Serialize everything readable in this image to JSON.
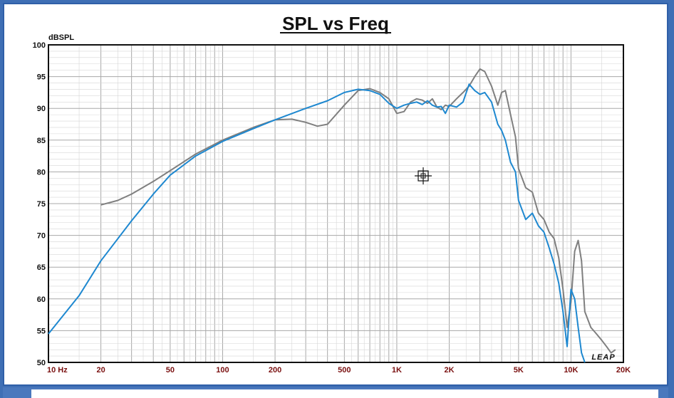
{
  "chart_data": {
    "type": "line",
    "title": "SPL vs Freq",
    "ylabel": "dBSPL",
    "xlabel": "",
    "xscale": "log",
    "xlim": [
      10,
      20000
    ],
    "ylim": [
      50,
      100
    ],
    "grid": true,
    "yticks": [
      50,
      55,
      60,
      65,
      70,
      75,
      80,
      85,
      90,
      95,
      100
    ],
    "xticks": [
      {
        "value": 10,
        "label": "10  Hz"
      },
      {
        "value": 20,
        "label": "20"
      },
      {
        "value": 50,
        "label": "50"
      },
      {
        "value": 100,
        "label": "100"
      },
      {
        "value": 200,
        "label": "200"
      },
      {
        "value": 500,
        "label": "500"
      },
      {
        "value": 1000,
        "label": "1K"
      },
      {
        "value": 2000,
        "label": "2K"
      },
      {
        "value": 5000,
        "label": "5K"
      },
      {
        "value": 10000,
        "label": "10K"
      },
      {
        "value": 20000,
        "label": "20K"
      }
    ],
    "series": [
      {
        "color": "#7f7f7f",
        "x": [
          20,
          25,
          30,
          40,
          50,
          70,
          100,
          150,
          200,
          250,
          300,
          350,
          400,
          500,
          600,
          700,
          800,
          900,
          1000,
          1100,
          1200,
          1300,
          1400,
          1500,
          1600,
          1700,
          1800,
          1900,
          2000,
          2200,
          2400,
          2600,
          2800,
          3000,
          3200,
          3500,
          3800,
          4000,
          4200,
          4500,
          4800,
          5000,
          5500,
          6000,
          6500,
          7000,
          7500,
          8000,
          8500,
          9000,
          9500,
          10000,
          10500,
          11000,
          11500,
          12000,
          13000,
          14000,
          15000,
          16000,
          17000,
          18000
        ],
        "y": [
          74.8,
          75.5,
          76.5,
          78.5,
          80.2,
          82.8,
          85,
          87,
          88.2,
          88.3,
          87.8,
          87.2,
          87.5,
          90.5,
          92.8,
          93.1,
          92.5,
          91.5,
          89.2,
          89.5,
          91.0,
          91.5,
          91.3,
          90.8,
          91.5,
          90.2,
          89.8,
          90.5,
          90.3,
          91.5,
          92.5,
          93.5,
          95.0,
          96.2,
          95.8,
          93.5,
          90.5,
          92.5,
          92.8,
          89.0,
          85.5,
          80.5,
          77.5,
          76.8,
          73.5,
          72.5,
          70.5,
          69.5,
          66.5,
          61.5,
          55.5,
          59.5,
          67.5,
          69.2,
          66.0,
          58.0,
          55.5,
          54.5,
          53.5,
          52.5,
          51.5,
          52.0
        ]
      },
      {
        "color": "#1e88d0",
        "x": [
          10,
          15,
          20,
          30,
          40,
          50,
          70,
          100,
          150,
          200,
          300,
          400,
          500,
          600,
          700,
          800,
          900,
          1000,
          1100,
          1200,
          1300,
          1400,
          1500,
          1600,
          1700,
          1800,
          1900,
          2000,
          2200,
          2400,
          2600,
          2800,
          3000,
          3200,
          3500,
          3800,
          4000,
          4200,
          4500,
          4800,
          5000,
          5500,
          6000,
          6500,
          7000,
          7500,
          8000,
          8500,
          9000,
          9500,
          10000,
          10500,
          11000,
          11500,
          12000
        ],
        "y": [
          54.5,
          60.5,
          66,
          72.3,
          76.5,
          79.5,
          82.5,
          84.8,
          86.8,
          88.2,
          90.0,
          91.2,
          92.5,
          93.0,
          92.8,
          92.2,
          90.8,
          90.0,
          90.5,
          90.8,
          91.0,
          90.6,
          91.2,
          90.5,
          90.2,
          90.3,
          89.2,
          90.5,
          90.2,
          91.0,
          93.8,
          92.8,
          92.2,
          92.5,
          91.0,
          87.5,
          86.5,
          85.0,
          81.5,
          80.0,
          75.5,
          72.5,
          73.5,
          71.5,
          70.5,
          68.0,
          65.5,
          62.5,
          58.0,
          52.5,
          61.5,
          60.0,
          55.5,
          51.5,
          50.0
        ]
      }
    ]
  },
  "watermark": "LEAP",
  "colors": {
    "frame": "#3f6fb5",
    "grid_major": "#a8a8a8",
    "grid_minor": "#d6d6d6",
    "tick_label_x": "#7a1010"
  }
}
